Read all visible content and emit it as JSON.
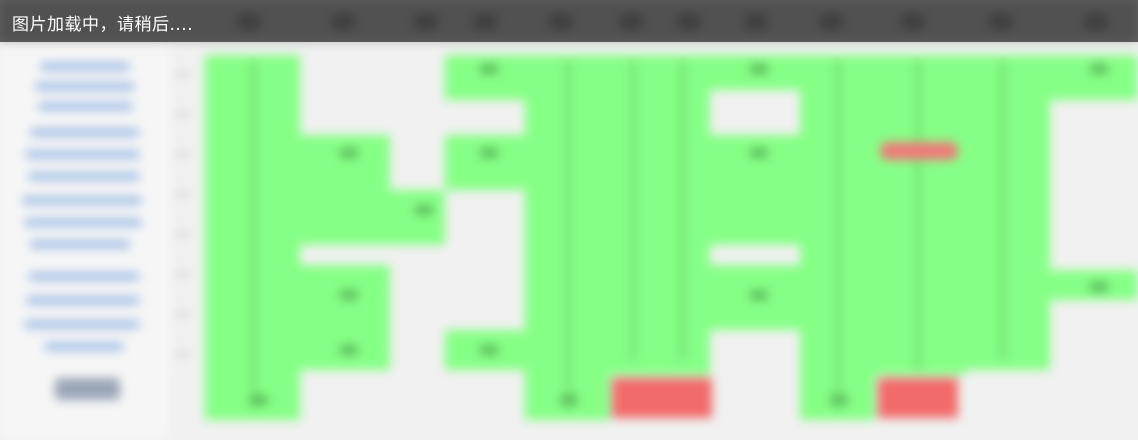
{
  "loading": {
    "text": "图片加载中，请稍后...."
  },
  "colors": {
    "cell_green": "#86ff86",
    "cell_red": "#f26a6a",
    "overlay": "#3a3a3a",
    "link_blue": "#a9c3e8"
  }
}
